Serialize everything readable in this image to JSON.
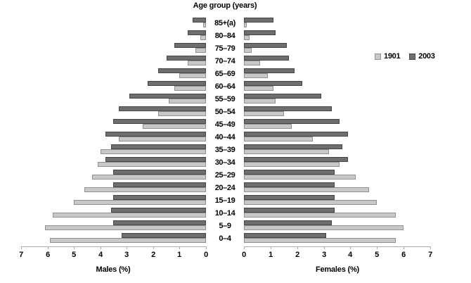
{
  "chart_data": {
    "type": "bar",
    "subtype": "population-pyramid",
    "title": "Age group (years)",
    "xlabel_left": "Males (%)",
    "xlabel_right": "Females (%)",
    "xlim": [
      0,
      7
    ],
    "grid": false,
    "legend_position": "right",
    "categories_top_to_bottom": [
      "85+(a)",
      "80–84",
      "75–79",
      "70–74",
      "65–69",
      "60–64",
      "55–59",
      "50–54",
      "45–49",
      "40–44",
      "35–39",
      "30–34",
      "25–29",
      "20–24",
      "15–19",
      "10–14",
      "5–9",
      "0–4"
    ],
    "ticks_males": [
      7,
      6,
      5,
      4,
      3,
      2,
      1,
      0
    ],
    "ticks_females": [
      0,
      1,
      2,
      3,
      4,
      5,
      6,
      7
    ],
    "series": [
      {
        "name": "1901",
        "side": "males",
        "fill": "#c8c8c8",
        "border": "#909090",
        "values": [
          0.1,
          0.2,
          0.4,
          0.7,
          1.0,
          1.2,
          1.4,
          1.8,
          2.4,
          3.3,
          4.0,
          4.1,
          4.3,
          4.6,
          5.0,
          5.8,
          6.1,
          5.9
        ]
      },
      {
        "name": "2003",
        "side": "males",
        "fill": "#6e6e6e",
        "border": "#454545",
        "values": [
          0.5,
          0.7,
          1.2,
          1.5,
          1.8,
          2.2,
          2.9,
          3.3,
          3.5,
          3.8,
          3.6,
          3.8,
          3.5,
          3.5,
          3.5,
          3.6,
          3.5,
          3.2
        ]
      },
      {
        "name": "1901",
        "side": "females",
        "fill": "#c8c8c8",
        "border": "#909090",
        "values": [
          0.1,
          0.2,
          0.3,
          0.6,
          0.9,
          1.1,
          1.2,
          1.5,
          1.8,
          2.6,
          3.2,
          3.6,
          4.2,
          4.7,
          5.0,
          5.7,
          6.0,
          5.7
        ]
      },
      {
        "name": "2003",
        "side": "females",
        "fill": "#6e6e6e",
        "border": "#454545",
        "values": [
          1.1,
          1.2,
          1.6,
          1.7,
          1.9,
          2.2,
          2.9,
          3.3,
          3.6,
          3.9,
          3.7,
          3.9,
          3.4,
          3.4,
          3.4,
          3.4,
          3.3,
          3.1
        ]
      }
    ],
    "legend": [
      {
        "label": "1901",
        "fill": "#c8c8c8",
        "border": "#909090"
      },
      {
        "label": "2003",
        "fill": "#6e6e6e",
        "border": "#454545"
      }
    ]
  }
}
